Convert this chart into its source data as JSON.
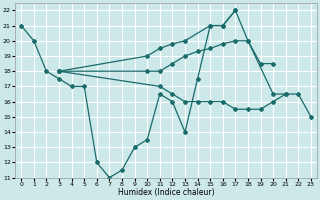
{
  "xlabel": "Humidex (Indice chaleur)",
  "background_color": "#cce8e8",
  "grid_color": "#ffffff",
  "line_color": "#1a6b6b",
  "xlim": [
    -0.5,
    23.5
  ],
  "ylim": [
    11,
    22.5
  ],
  "yticks": [
    11,
    12,
    13,
    14,
    15,
    16,
    17,
    18,
    19,
    20,
    21,
    22
  ],
  "xticks": [
    0,
    1,
    2,
    3,
    4,
    5,
    6,
    7,
    8,
    9,
    10,
    11,
    12,
    13,
    14,
    15,
    16,
    17,
    18,
    19,
    20,
    21,
    22,
    23
  ],
  "line1": {
    "x": [
      0,
      1,
      2,
      3,
      4,
      5,
      6,
      7,
      8,
      9,
      10,
      11,
      12,
      13,
      14,
      15,
      16,
      17
    ],
    "y": [
      21,
      20,
      18,
      17.5,
      17,
      17,
      12,
      11,
      11.5,
      13,
      13.5,
      16.5,
      16,
      14,
      17.5,
      21,
      21,
      22
    ]
  },
  "line2": {
    "x": [
      3,
      10,
      11,
      12,
      13,
      15,
      16,
      17,
      18,
      20,
      21
    ],
    "y": [
      18,
      19,
      19.5,
      19.8,
      20,
      21,
      21,
      22,
      20,
      16.5,
      16.5
    ]
  },
  "line3": {
    "x": [
      3,
      10,
      11,
      12,
      13,
      14,
      15,
      16,
      17,
      18,
      19,
      20
    ],
    "y": [
      18,
      18,
      18,
      18.5,
      19,
      19.3,
      19.5,
      19.8,
      20,
      20,
      18.5,
      18.5
    ]
  },
  "line4": {
    "x": [
      3,
      11,
      12,
      13,
      14,
      15,
      16,
      17,
      18,
      19,
      20,
      21,
      22,
      23
    ],
    "y": [
      18,
      17,
      16.5,
      16,
      16,
      16,
      16,
      15.5,
      15.5,
      15.5,
      16,
      16.5,
      16.5,
      15
    ]
  }
}
